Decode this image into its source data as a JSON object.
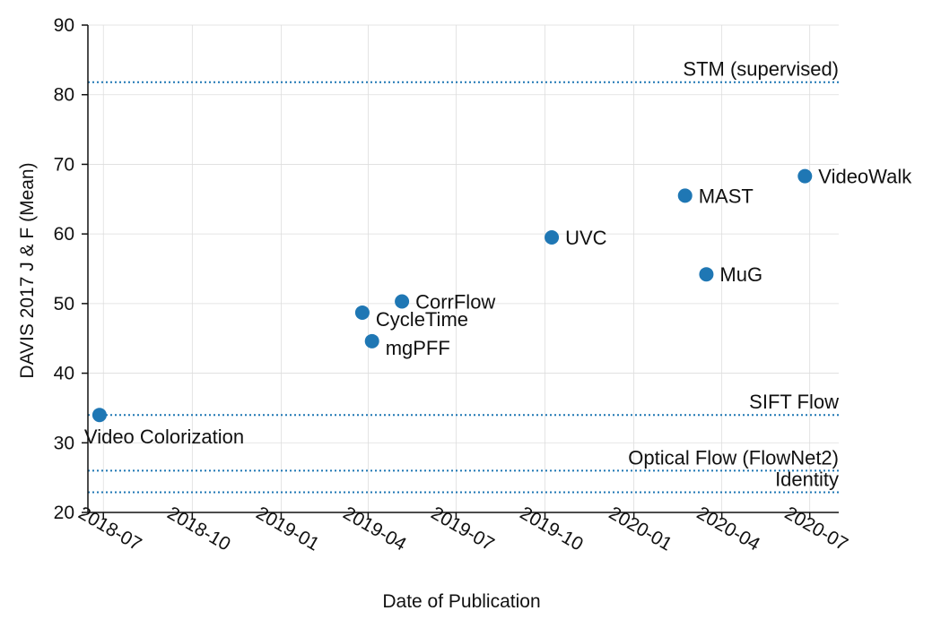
{
  "chart_data": {
    "type": "scatter",
    "title": "",
    "xlabel": "Date of Publication",
    "ylabel": "DAVIS 2017 J & F (Mean)",
    "ylim": [
      20,
      90
    ],
    "yticks": [
      20,
      30,
      40,
      50,
      60,
      70,
      80,
      90
    ],
    "xlim": [
      "2018-06-15",
      "2020-07-31"
    ],
    "xticks": [
      "2018-07",
      "2018-10",
      "2019-01",
      "2019-04",
      "2019-07",
      "2019-10",
      "2020-01",
      "2020-04",
      "2020-07"
    ],
    "grid": true,
    "point_color": "#1f77b4",
    "points": [
      {
        "label": "Video Colorization",
        "date": "2018-06-27",
        "value": 34.0,
        "label_position": "below"
      },
      {
        "label": "CycleTime",
        "date": "2019-03-26",
        "value": 48.7,
        "label_position": "below-right"
      },
      {
        "label": "mgPFF",
        "date": "2019-04-05",
        "value": 44.6,
        "label_position": "below-right"
      },
      {
        "label": "CorrFlow",
        "date": "2019-05-06",
        "value": 50.3,
        "label_position": "right"
      },
      {
        "label": "UVC",
        "date": "2019-10-08",
        "value": 59.5,
        "label_position": "right"
      },
      {
        "label": "MAST",
        "date": "2020-02-23",
        "value": 65.5,
        "label_position": "right"
      },
      {
        "label": "MuG",
        "date": "2020-03-16",
        "value": 54.2,
        "label_position": "right"
      },
      {
        "label": "VideoWalk",
        "date": "2020-06-26",
        "value": 68.3,
        "label_position": "right"
      }
    ],
    "reference_lines": [
      {
        "label": "STM (supervised)",
        "value": 81.8
      },
      {
        "label": "SIFT Flow",
        "value": 34.0
      },
      {
        "label": "Optical Flow (FlowNet2)",
        "value": 26.0
      },
      {
        "label": "Identity",
        "value": 22.9
      }
    ]
  }
}
